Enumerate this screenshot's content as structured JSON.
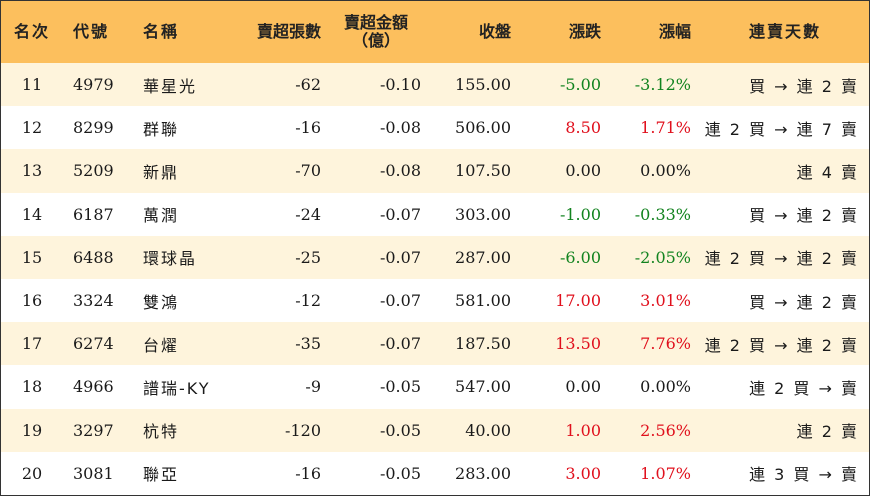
{
  "headers": [
    "名次",
    "代號",
    "名稱",
    "賣超張數",
    "賣超金額\n（億）",
    "收盤",
    "漲跌",
    "漲幅",
    "連賣天數"
  ],
  "colors": {
    "header_bg": "#fcbf5d",
    "odd_row_bg": "#fef4dc",
    "up": "#e0101d",
    "down": "#12831f"
  },
  "rows": [
    {
      "rank": "11",
      "code": "4979",
      "name": "華星光",
      "sell_lots": "-62",
      "sell_amount": "-0.10",
      "close": "155.00",
      "change": "-5.00",
      "pct": "-3.12%",
      "streak": "買 → 連 2 賣",
      "dir": "neg"
    },
    {
      "rank": "12",
      "code": "8299",
      "name": "群聯",
      "sell_lots": "-16",
      "sell_amount": "-0.08",
      "close": "506.00",
      "change": "8.50",
      "pct": "1.71%",
      "streak": "連 2 買 → 連 7 賣",
      "dir": "pos"
    },
    {
      "rank": "13",
      "code": "5209",
      "name": "新鼎",
      "sell_lots": "-70",
      "sell_amount": "-0.08",
      "close": "107.50",
      "change": "0.00",
      "pct": "0.00%",
      "streak": "連 4 賣",
      "dir": "flat"
    },
    {
      "rank": "14",
      "code": "6187",
      "name": "萬潤",
      "sell_lots": "-24",
      "sell_amount": "-0.07",
      "close": "303.00",
      "change": "-1.00",
      "pct": "-0.33%",
      "streak": "買 → 連 2 賣",
      "dir": "neg"
    },
    {
      "rank": "15",
      "code": "6488",
      "name": "環球晶",
      "sell_lots": "-25",
      "sell_amount": "-0.07",
      "close": "287.00",
      "change": "-6.00",
      "pct": "-2.05%",
      "streak": "連 2 買 → 連 2 賣",
      "dir": "neg"
    },
    {
      "rank": "16",
      "code": "3324",
      "name": "雙鴻",
      "sell_lots": "-12",
      "sell_amount": "-0.07",
      "close": "581.00",
      "change": "17.00",
      "pct": "3.01%",
      "streak": "買 → 連 2 賣",
      "dir": "pos"
    },
    {
      "rank": "17",
      "code": "6274",
      "name": "台燿",
      "sell_lots": "-35",
      "sell_amount": "-0.07",
      "close": "187.50",
      "change": "13.50",
      "pct": "7.76%",
      "streak": "連 2 買 → 連 2 賣",
      "dir": "pos"
    },
    {
      "rank": "18",
      "code": "4966",
      "name": "譜瑞-KY",
      "sell_lots": "-9",
      "sell_amount": "-0.05",
      "close": "547.00",
      "change": "0.00",
      "pct": "0.00%",
      "streak": "連 2 買 → 賣",
      "dir": "flat"
    },
    {
      "rank": "19",
      "code": "3297",
      "name": "杭特",
      "sell_lots": "-120",
      "sell_amount": "-0.05",
      "close": "40.00",
      "change": "1.00",
      "pct": "2.56%",
      "streak": "連 2 賣",
      "dir": "pos"
    },
    {
      "rank": "20",
      "code": "3081",
      "name": "聯亞",
      "sell_lots": "-16",
      "sell_amount": "-0.05",
      "close": "283.00",
      "change": "3.00",
      "pct": "1.07%",
      "streak": "連 3 買 → 賣",
      "dir": "pos"
    }
  ]
}
